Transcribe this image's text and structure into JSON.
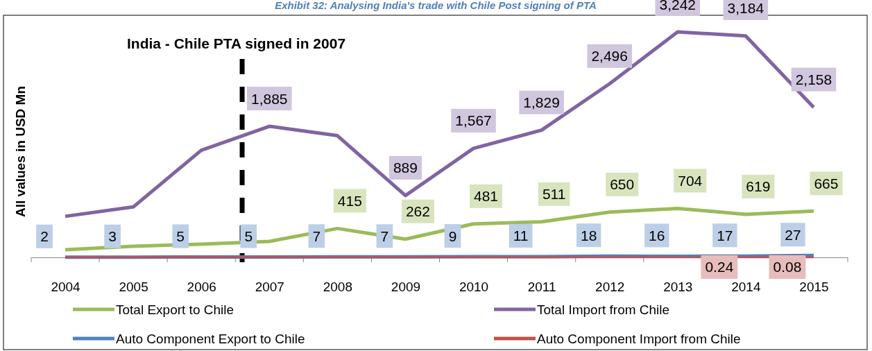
{
  "chart_data": {
    "type": "line",
    "title": "Exhibit 32: Analysing India's trade with Chile Post signing of PTA",
    "ylabel": "All values in USD Mn",
    "x": [
      2004,
      2005,
      2006,
      2007,
      2008,
      2009,
      2010,
      2011,
      2012,
      2013,
      2014,
      2015
    ],
    "xlim": [
      2003.5,
      2015.5
    ],
    "xticks": [
      2004,
      2005,
      2006,
      2007,
      2008,
      2009,
      2010,
      2011,
      2012,
      2013,
      2014,
      2015
    ],
    "series": [
      {
        "name": "Total Export to Chile",
        "color": "#9bbb59",
        "values": [
          110,
          160,
          190,
          230,
          415,
          262,
          481,
          511,
          650,
          704,
          619,
          665
        ],
        "value_labels": [
          null,
          null,
          null,
          null,
          "415",
          "262",
          "481",
          "511",
          "650",
          "704",
          "619",
          "665"
        ]
      },
      {
        "name": "Total Import from Chile",
        "color": "#8064a2",
        "values": [
          590,
          725,
          1540,
          1885,
          1750,
          889,
          1567,
          1829,
          2496,
          3242,
          3184,
          2158
        ],
        "value_labels": [
          null,
          null,
          null,
          "1,885",
          null,
          "889",
          "1,567",
          "1,829",
          "2,496",
          "3,242",
          "3,184",
          "2,158"
        ]
      },
      {
        "name": "Auto Component Export to Chile",
        "color": "#4f81bd",
        "values": [
          2,
          3,
          5,
          5,
          7,
          7,
          9,
          11,
          18,
          16,
          17,
          27
        ],
        "value_labels": [
          "2",
          "3",
          "5",
          "5",
          "7",
          "7",
          "9",
          "11",
          "18",
          "16",
          "17",
          "27"
        ]
      },
      {
        "name": "Auto Component Import from Chile",
        "color": "#c0504d",
        "values": [
          0.1,
          0.1,
          0.1,
          0.1,
          0.1,
          0.1,
          0.1,
          0.1,
          0.1,
          0.1,
          0.24,
          0.08
        ],
        "value_labels": [
          null,
          null,
          null,
          null,
          null,
          null,
          null,
          null,
          null,
          null,
          "0.24",
          "0.08"
        ]
      }
    ],
    "ref_lines": [
      {
        "axis": "x",
        "value": 2006.6,
        "label": "India - Chile PTA signed in 2007",
        "color": "#000000",
        "line_style": "dashed"
      }
    ],
    "legend": "bottom",
    "marker": "none",
    "line_style": "solid",
    "grid": false
  }
}
